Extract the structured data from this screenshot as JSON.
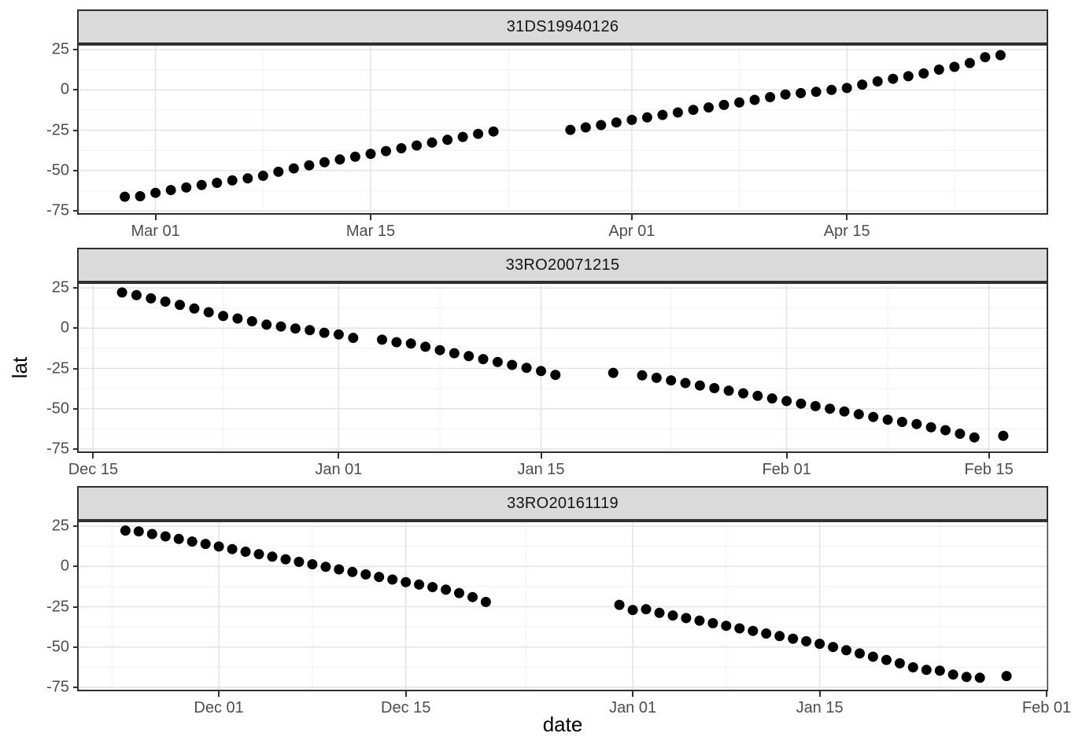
{
  "chart_data": {
    "type": "scatter",
    "xlabel": "date",
    "ylabel": "lat",
    "point_color": "#000000",
    "point_radius": 6.5,
    "colors": {
      "strip_bg": "#dadada",
      "panel_bg": "#ffffff",
      "panel_border": "#2f2f2f",
      "grid_major": "#e3e3e3",
      "grid_minor": "#f1f1f1",
      "tick_mark": "#333333",
      "tick_label": "#4d4d4d"
    },
    "grid": "major and minor, on",
    "legend": "none",
    "y_axis": {
      "domain": [
        -76.5,
        27.5
      ],
      "ticks": [
        {
          "value": 25,
          "label": "25"
        },
        {
          "value": 0,
          "label": "0"
        },
        {
          "value": -25,
          "label": "-25"
        },
        {
          "value": -50,
          "label": "-50"
        },
        {
          "value": -75,
          "label": "-75"
        }
      ],
      "minor_ticks": [
        12.5,
        -12.5,
        -37.5,
        -62.5
      ]
    },
    "facets": [
      {
        "label": "31DS19940126",
        "x_domain": [
          "1994-02-24",
          "1994-04-28"
        ],
        "x_ticks": [
          {
            "date": "1994-03-01",
            "label": "Mar 01"
          },
          {
            "date": "1994-03-15",
            "label": "Mar 15"
          },
          {
            "date": "1994-04-01",
            "label": "Apr 01"
          },
          {
            "date": "1994-04-15",
            "label": "Apr 15"
          }
        ],
        "x_minor_ticks": [
          "1994-03-08",
          "1994-03-24",
          "1994-04-08",
          "1994-04-22"
        ],
        "points": [
          [
            "1994-02-27",
            -66.3
          ],
          [
            "1994-02-28",
            -66
          ],
          [
            "1994-03-01",
            -63.9
          ],
          [
            "1994-03-02",
            -62.2
          ],
          [
            "1994-03-03",
            -60.6
          ],
          [
            "1994-03-04",
            -59
          ],
          [
            "1994-03-05",
            -57.7
          ],
          [
            "1994-03-06",
            -56.2
          ],
          [
            "1994-03-07",
            -54.9
          ],
          [
            "1994-03-08",
            -53.3
          ],
          [
            "1994-03-09",
            -50.8
          ],
          [
            "1994-03-10",
            -48.7
          ],
          [
            "1994-03-11",
            -46.8
          ],
          [
            "1994-03-12",
            -44.9
          ],
          [
            "1994-03-13",
            -43.2
          ],
          [
            "1994-03-14",
            -41.5
          ],
          [
            "1994-03-15",
            -39.7
          ],
          [
            "1994-03-16",
            -38
          ],
          [
            "1994-03-17",
            -36.2
          ],
          [
            "1994-03-18",
            -34.5
          ],
          [
            "1994-03-19",
            -32.7
          ],
          [
            "1994-03-20",
            -31
          ],
          [
            "1994-03-21",
            -29.2
          ],
          [
            "1994-03-22",
            -27.3
          ],
          [
            "1994-03-23",
            -25.8
          ],
          [
            "1994-03-28",
            -24.8
          ],
          [
            "1994-03-29",
            -23.3
          ],
          [
            "1994-03-30",
            -21.8
          ],
          [
            "1994-03-31",
            -20.2
          ],
          [
            "1994-04-01",
            -18.6
          ],
          [
            "1994-04-02",
            -17.1
          ],
          [
            "1994-04-03",
            -15.5
          ],
          [
            "1994-04-04",
            -14
          ],
          [
            "1994-04-05",
            -12.4
          ],
          [
            "1994-04-06",
            -10.9
          ],
          [
            "1994-04-07",
            -9.3
          ],
          [
            "1994-04-08",
            -7.8
          ],
          [
            "1994-04-09",
            -6.2
          ],
          [
            "1994-04-10",
            -4.5
          ],
          [
            "1994-04-11",
            -2.8
          ],
          [
            "1994-04-12",
            -2
          ],
          [
            "1994-04-13",
            -1.2
          ],
          [
            "1994-04-14",
            0
          ],
          [
            "1994-04-15",
            1.2
          ],
          [
            "1994-04-16",
            3.3
          ],
          [
            "1994-04-17",
            5.3
          ],
          [
            "1994-04-18",
            6.9
          ],
          [
            "1994-04-19",
            8.5
          ],
          [
            "1994-04-20",
            10.2
          ],
          [
            "1994-04-21",
            12.6
          ],
          [
            "1994-04-22",
            14.3
          ],
          [
            "1994-04-23",
            16.7
          ],
          [
            "1994-04-24",
            20.3
          ],
          [
            "1994-04-25",
            21.6
          ]
        ]
      },
      {
        "label": "33RO20071215",
        "x_domain": [
          "2007-12-14",
          "2008-02-19"
        ],
        "x_ticks": [
          {
            "date": "2007-12-15",
            "label": "Dec 15"
          },
          {
            "date": "2008-01-01",
            "label": "Jan 01"
          },
          {
            "date": "2008-01-15",
            "label": "Jan 15"
          },
          {
            "date": "2008-02-01",
            "label": "Feb 01"
          },
          {
            "date": "2008-02-15",
            "label": "Feb 15"
          }
        ],
        "x_minor_ticks": [
          "2007-12-24",
          "2008-01-08",
          "2008-01-24",
          "2008-02-08"
        ],
        "points": [
          [
            "2007-12-17",
            22.2
          ],
          [
            "2007-12-18",
            20.5
          ],
          [
            "2007-12-19",
            18.5
          ],
          [
            "2007-12-20",
            16.5
          ],
          [
            "2007-12-21",
            14.5
          ],
          [
            "2007-12-22",
            12.2
          ],
          [
            "2007-12-23",
            9.9
          ],
          [
            "2007-12-24",
            7.6
          ],
          [
            "2007-12-25",
            6
          ],
          [
            "2007-12-26",
            4.3
          ],
          [
            "2007-12-27",
            2.2
          ],
          [
            "2007-12-28",
            1.1
          ],
          [
            "2007-12-29",
            -0.2
          ],
          [
            "2007-12-30",
            -1.2
          ],
          [
            "2007-12-31",
            -2.8
          ],
          [
            "2008-01-01",
            -3.9
          ],
          [
            "2008-01-02",
            -6
          ],
          [
            "2008-01-04",
            -7.1
          ],
          [
            "2008-01-05",
            -8.7
          ],
          [
            "2008-01-06",
            -9.5
          ],
          [
            "2008-01-07",
            -11.5
          ],
          [
            "2008-01-08",
            -13.6
          ],
          [
            "2008-01-09",
            -15.5
          ],
          [
            "2008-01-10",
            -17.3
          ],
          [
            "2008-01-11",
            -19.2
          ],
          [
            "2008-01-12",
            -21
          ],
          [
            "2008-01-13",
            -22.8
          ],
          [
            "2008-01-14",
            -24.6
          ],
          [
            "2008-01-15",
            -26.6
          ],
          [
            "2008-01-16",
            -29
          ],
          [
            "2008-01-20",
            -27.7
          ],
          [
            "2008-01-22",
            -29.3
          ],
          [
            "2008-01-23",
            -30.8
          ],
          [
            "2008-01-24",
            -32.4
          ],
          [
            "2008-01-25",
            -34
          ],
          [
            "2008-01-26",
            -35.6
          ],
          [
            "2008-01-27",
            -37.2
          ],
          [
            "2008-01-28",
            -38.8
          ],
          [
            "2008-01-29",
            -40.4
          ],
          [
            "2008-01-30",
            -42
          ],
          [
            "2008-01-31",
            -43.6
          ],
          [
            "2008-02-01",
            -45.2
          ],
          [
            "2008-02-02",
            -46.8
          ],
          [
            "2008-02-03",
            -48.4
          ],
          [
            "2008-02-04",
            -50
          ],
          [
            "2008-02-05",
            -51.7
          ],
          [
            "2008-02-06",
            -53.4
          ],
          [
            "2008-02-07",
            -55.1
          ],
          [
            "2008-02-08",
            -56.8
          ],
          [
            "2008-02-09",
            -58.2
          ],
          [
            "2008-02-10",
            -59.5
          ],
          [
            "2008-02-11",
            -61.5
          ],
          [
            "2008-02-12",
            -63.3
          ],
          [
            "2008-02-13",
            -65.5
          ],
          [
            "2008-02-14",
            -67.8
          ],
          [
            "2008-02-16",
            -66.8
          ]
        ]
      },
      {
        "label": "33RO20161119",
        "x_domain": [
          "2016-11-20T12",
          "2017-02-01"
        ],
        "x_ticks": [
          {
            "date": "2016-12-01",
            "label": "Dec 01"
          },
          {
            "date": "2016-12-15",
            "label": "Dec 15"
          },
          {
            "date": "2017-01-01",
            "label": "Jan 01"
          },
          {
            "date": "2017-01-15",
            "label": "Jan 15"
          },
          {
            "date": "2017-02-01",
            "label": "Feb 01"
          }
        ],
        "x_minor_ticks": [
          "2016-11-23",
          "2016-12-08",
          "2016-12-24",
          "2017-01-08",
          "2017-01-24"
        ],
        "points": [
          [
            "2016-11-24",
            22.3
          ],
          [
            "2016-11-25",
            21.8
          ],
          [
            "2016-11-26",
            20.2
          ],
          [
            "2016-11-27",
            18.7
          ],
          [
            "2016-11-28",
            17.1
          ],
          [
            "2016-11-29",
            15.5
          ],
          [
            "2016-11-30",
            14
          ],
          [
            "2016-12-01",
            12.4
          ],
          [
            "2016-12-02",
            10.8
          ],
          [
            "2016-12-03",
            9.2
          ],
          [
            "2016-12-04",
            7.7
          ],
          [
            "2016-12-05",
            6.1
          ],
          [
            "2016-12-06",
            4.5
          ],
          [
            "2016-12-07",
            2.9
          ],
          [
            "2016-12-08",
            1.4
          ],
          [
            "2016-12-09",
            -0.2
          ],
          [
            "2016-12-10",
            -1.8
          ],
          [
            "2016-12-11",
            -3.4
          ],
          [
            "2016-12-12",
            -4.9
          ],
          [
            "2016-12-13",
            -6.5
          ],
          [
            "2016-12-14",
            -8.1
          ],
          [
            "2016-12-15",
            -9.7
          ],
          [
            "2016-12-16",
            -11.2
          ],
          [
            "2016-12-17",
            -12.8
          ],
          [
            "2016-12-18",
            -14.4
          ],
          [
            "2016-12-19",
            -16.5
          ],
          [
            "2016-12-20",
            -19
          ],
          [
            "2016-12-21",
            -22
          ],
          [
            "2016-12-31",
            -23.8
          ],
          [
            "2017-01-01",
            -27
          ],
          [
            "2017-01-02",
            -26.5
          ],
          [
            "2017-01-03",
            -28.8
          ],
          [
            "2017-01-04",
            -30.4
          ],
          [
            "2017-01-05",
            -32
          ],
          [
            "2017-01-06",
            -33.6
          ],
          [
            "2017-01-07",
            -35.2
          ],
          [
            "2017-01-08",
            -36.8
          ],
          [
            "2017-01-09",
            -38.4
          ],
          [
            "2017-01-10",
            -40
          ],
          [
            "2017-01-11",
            -41.6
          ],
          [
            "2017-01-12",
            -43.2
          ],
          [
            "2017-01-13",
            -44.8
          ],
          [
            "2017-01-14",
            -46.4
          ],
          [
            "2017-01-15",
            -48
          ],
          [
            "2017-01-16",
            -50
          ],
          [
            "2017-01-17",
            -52
          ],
          [
            "2017-01-18",
            -54
          ],
          [
            "2017-01-19",
            -56
          ],
          [
            "2017-01-20",
            -58
          ],
          [
            "2017-01-21",
            -60.1
          ],
          [
            "2017-01-22",
            -62.6
          ],
          [
            "2017-01-23",
            -64.2
          ],
          [
            "2017-01-24",
            -64.7
          ],
          [
            "2017-01-25",
            -67.1
          ],
          [
            "2017-01-26",
            -68.6
          ],
          [
            "2017-01-27",
            -69.1
          ],
          [
            "2017-01-29",
            -68
          ]
        ]
      }
    ]
  }
}
